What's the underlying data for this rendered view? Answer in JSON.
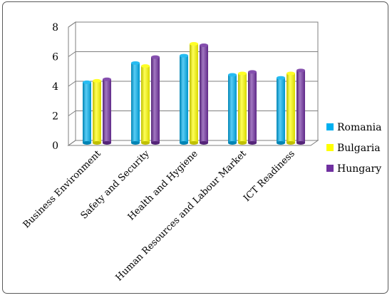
{
  "chart_data": {
    "type": "bar",
    "title": "",
    "xlabel": "",
    "ylabel": "",
    "categories": [
      "Business Environment",
      "Safety and Security",
      "Health and Hygiene",
      "Human Resources and Labour Market",
      "ICT Readiness"
    ],
    "series": [
      {
        "name": "Romania",
        "color": "#00b0f0",
        "values": [
          4.1,
          5.4,
          5.9,
          4.6,
          4.4
        ]
      },
      {
        "name": "Bulgaria",
        "color": "#ffff00",
        "values": [
          4.2,
          5.2,
          6.7,
          4.7,
          4.7
        ]
      },
      {
        "name": "Hungary",
        "color": "#7030a0",
        "values": [
          4.3,
          5.8,
          6.6,
          4.8,
          4.9
        ]
      }
    ],
    "ylim": [
      0,
      8
    ],
    "yticks": [
      0,
      2,
      4,
      6,
      8
    ],
    "grid": true,
    "legend_position": "right",
    "style": "3d-cylinder"
  }
}
